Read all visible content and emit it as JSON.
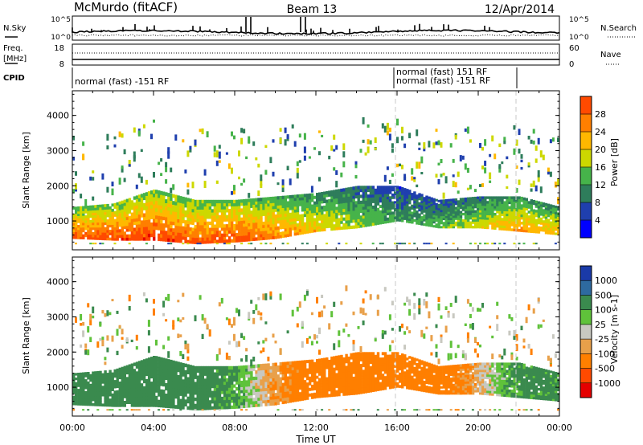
{
  "header": {
    "station": "McMurdo (fitACF)",
    "beam": "Beam 13",
    "date": "12/Apr/2014"
  },
  "sky_panel": {
    "left_label": "N.Sky",
    "right_label": "N.Search",
    "left_ticks": [
      "10^5",
      "10^0"
    ],
    "right_ticks": [
      "10^5",
      "10^0"
    ]
  },
  "freq_panel": {
    "left_label_1": "Freq.",
    "left_label_2": "[MHz]",
    "right_label": "Nave",
    "left_ticks": [
      "18",
      "8"
    ],
    "right_ticks": [
      "60",
      "0"
    ]
  },
  "cpid_panel": {
    "label": "CPID",
    "mode_1": "normal (fast) -151 RF",
    "mode_2a": "normal (fast) 151 RF",
    "mode_2b": "normal (fast) -151 RF"
  },
  "colors": {
    "power_scale": [
      "#0000ff",
      "#1f3fae",
      "#2e7d5b",
      "#46b34a",
      "#cdd800",
      "#ffb800",
      "#ff7f00",
      "#ff4a00",
      "#e50000"
    ],
    "velocity_scale": [
      "#e50000",
      "#ff4a00",
      "#ff7f00",
      "#e8a04a",
      "#c8c8c0",
      "#5fc23a",
      "#3a8a4e",
      "#2e6aa0",
      "#1a3aa8"
    ],
    "marker_line": "#c8c8c8"
  },
  "power_colorbar": {
    "label": "Power [dB]",
    "ticks": [
      "4",
      "8",
      "12",
      "16",
      "20",
      "24",
      "28"
    ]
  },
  "velocity_colorbar": {
    "label": "Velocity [m s-1]",
    "ticks": [
      "-1000",
      "-500",
      "-100",
      "-25",
      "25",
      "100",
      "500",
      "1000"
    ]
  },
  "chart_data": [
    {
      "type": "heatmap",
      "title": "",
      "xlabel": "Time UT",
      "ylabel": "Slant Range [km]",
      "x_ticks": [
        "00:00",
        "04:00",
        "08:00",
        "12:00",
        "16:00",
        "20:00",
        "00:00"
      ],
      "y_ticks": [
        "1000",
        "2000",
        "3000",
        "4000"
      ],
      "xlim_hours": [
        0,
        24
      ],
      "ylim_km": [
        180,
        4700
      ],
      "colorbar": "Power [dB]",
      "z_range": [
        0,
        30
      ],
      "grid": false,
      "main_band": [
        {
          "t": 0,
          "lower": 500,
          "upper": 1400,
          "z": 26
        },
        {
          "t": 2,
          "lower": 450,
          "upper": 1500,
          "z": 27
        },
        {
          "t": 4,
          "lower": 450,
          "upper": 1900,
          "z": 28
        },
        {
          "t": 6,
          "lower": 350,
          "upper": 1600,
          "z": 26
        },
        {
          "t": 8,
          "lower": 400,
          "upper": 1600,
          "z": 27
        },
        {
          "t": 10,
          "lower": 500,
          "upper": 1700,
          "z": 24
        },
        {
          "t": 12,
          "lower": 700,
          "upper": 1800,
          "z": 20
        },
        {
          "t": 14,
          "lower": 800,
          "upper": 2000,
          "z": 16
        },
        {
          "t": 16,
          "lower": 1000,
          "upper": 2000,
          "z": 12
        },
        {
          "t": 18,
          "lower": 800,
          "upper": 1600,
          "z": 14
        },
        {
          "t": 20,
          "lower": 800,
          "upper": 1700,
          "z": 18
        },
        {
          "t": 22,
          "lower": 700,
          "upper": 1700,
          "z": 22
        },
        {
          "t": 24,
          "lower": 600,
          "upper": 1400,
          "z": 20
        }
      ]
    },
    {
      "type": "heatmap",
      "title": "",
      "xlabel": "Time UT",
      "ylabel": "Slant Range [km]",
      "x_ticks": [
        "00:00",
        "04:00",
        "08:00",
        "12:00",
        "16:00",
        "20:00",
        "00:00"
      ],
      "y_ticks": [
        "1000",
        "2000",
        "3000",
        "4000"
      ],
      "xlim_hours": [
        0,
        24
      ],
      "ylim_km": [
        180,
        4700
      ],
      "colorbar": "Velocity [m s-1]",
      "z_range": [
        -1000,
        1000
      ],
      "grid": false,
      "main_band": [
        {
          "t": 0,
          "lower": 500,
          "upper": 1400,
          "z": 200
        },
        {
          "t": 2,
          "lower": 450,
          "upper": 1500,
          "z": 250
        },
        {
          "t": 4,
          "lower": 450,
          "upper": 1900,
          "z": 300
        },
        {
          "t": 6,
          "lower": 350,
          "upper": 1600,
          "z": 200
        },
        {
          "t": 8,
          "lower": 400,
          "upper": 1600,
          "z": 100
        },
        {
          "t": 10,
          "lower": 500,
          "upper": 1700,
          "z": -100
        },
        {
          "t": 12,
          "lower": 700,
          "upper": 1800,
          "z": -200
        },
        {
          "t": 14,
          "lower": 800,
          "upper": 2000,
          "z": -250
        },
        {
          "t": 16,
          "lower": 1000,
          "upper": 2000,
          "z": -300
        },
        {
          "t": 18,
          "lower": 800,
          "upper": 1600,
          "z": -200
        },
        {
          "t": 20,
          "lower": 800,
          "upper": 1700,
          "z": -50
        },
        {
          "t": 22,
          "lower": 700,
          "upper": 1700,
          "z": 150
        },
        {
          "t": 24,
          "lower": 600,
          "upper": 1400,
          "z": 150
        }
      ]
    }
  ]
}
